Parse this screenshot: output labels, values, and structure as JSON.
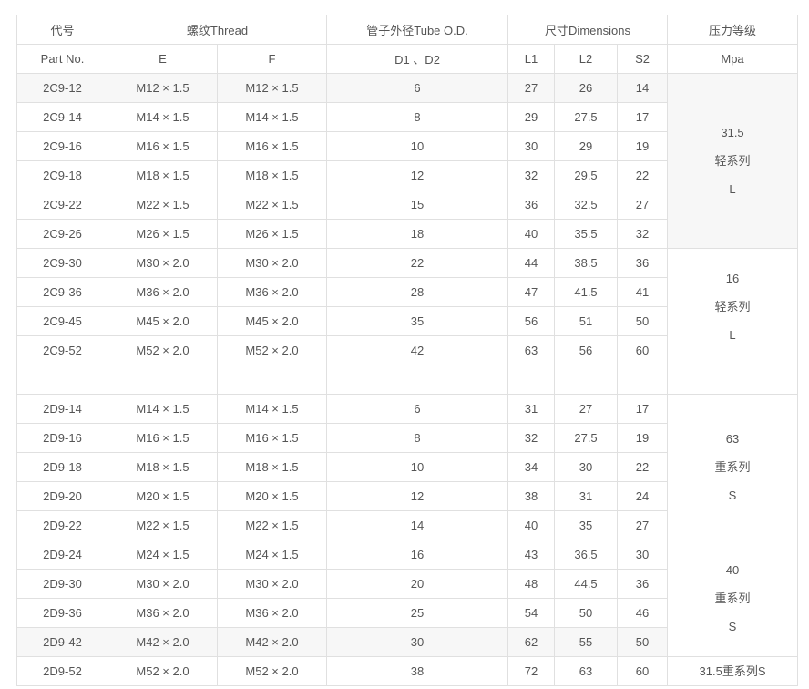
{
  "header": {
    "part_cn": "代号",
    "part_en": "Part No.",
    "thread": "螺纹Thread",
    "e": "E",
    "f": "F",
    "tube": "管子外径Tube O.D.",
    "d": "D1 、D2",
    "dims": "尺寸Dimensions",
    "l1": "L1",
    "l2": "L2",
    "s2": "S2",
    "pressure": "压力等级",
    "unit": "Mpa"
  },
  "rows": [
    {
      "part": "2C9-12",
      "e": "M12 × 1.5",
      "f": "M12 × 1.5",
      "d": "6",
      "l1": "27",
      "l2": "26",
      "s2": "14",
      "hl": true
    },
    {
      "part": "2C9-14",
      "e": "M14 × 1.5",
      "f": "M14 × 1.5",
      "d": "8",
      "l1": "29",
      "l2": "27.5",
      "s2": "17"
    },
    {
      "part": "2C9-16",
      "e": "M16 × 1.5",
      "f": "M16 × 1.5",
      "d": "10",
      "l1": "30",
      "l2": "29",
      "s2": "19"
    },
    {
      "part": "2C9-18",
      "e": "M18 × 1.5",
      "f": "M18 × 1.5",
      "d": "12",
      "l1": "32",
      "l2": "29.5",
      "s2": "22"
    },
    {
      "part": "2C9-22",
      "e": "M22 × 1.5",
      "f": "M22 × 1.5",
      "d": "15",
      "l1": "36",
      "l2": "32.5",
      "s2": "27"
    },
    {
      "part": "2C9-26",
      "e": "M26 × 1.5",
      "f": "M26 × 1.5",
      "d": "18",
      "l1": "40",
      "l2": "35.5",
      "s2": "32"
    },
    {
      "part": "2C9-30",
      "e": "M30 × 2.0",
      "f": "M30 × 2.0",
      "d": "22",
      "l1": "44",
      "l2": "38.5",
      "s2": "36"
    },
    {
      "part": "2C9-36",
      "e": "M36 × 2.0",
      "f": "M36 × 2.0",
      "d": "28",
      "l1": "47",
      "l2": "41.5",
      "s2": "41"
    },
    {
      "part": "2C9-45",
      "e": "M45 × 2.0",
      "f": "M45 × 2.0",
      "d": "35",
      "l1": "56",
      "l2": "51",
      "s2": "50"
    },
    {
      "part": "2C9-52",
      "e": "M52 × 2.0",
      "f": "M52 × 2.0",
      "d": "42",
      "l1": "63",
      "l2": "56",
      "s2": "60"
    },
    {
      "part": "",
      "e": "",
      "f": "",
      "d": "",
      "l1": "",
      "l2": "",
      "s2": ""
    },
    {
      "part": "2D9-14",
      "e": "M14 × 1.5",
      "f": "M14 × 1.5",
      "d": "6",
      "l1": "31",
      "l2": "27",
      "s2": "17"
    },
    {
      "part": "2D9-16",
      "e": "M16 × 1.5",
      "f": "M16 × 1.5",
      "d": "8",
      "l1": "32",
      "l2": "27.5",
      "s2": "19"
    },
    {
      "part": "2D9-18",
      "e": "M18 × 1.5",
      "f": "M18 × 1.5",
      "d": "10",
      "l1": "34",
      "l2": "30",
      "s2": "22"
    },
    {
      "part": "2D9-20",
      "e": "M20 × 1.5",
      "f": "M20 × 1.5",
      "d": "12",
      "l1": "38",
      "l2": "31",
      "s2": "24"
    },
    {
      "part": "2D9-22",
      "e": "M22 × 1.5",
      "f": "M22 × 1.5",
      "d": "14",
      "l1": "40",
      "l2": "35",
      "s2": "27"
    },
    {
      "part": "2D9-24",
      "e": "M24 × 1.5",
      "f": "M24 × 1.5",
      "d": "16",
      "l1": "43",
      "l2": "36.5",
      "s2": "30"
    },
    {
      "part": "2D9-30",
      "e": "M30 × 2.0",
      "f": "M30 × 2.0",
      "d": "20",
      "l1": "48",
      "l2": "44.5",
      "s2": "36"
    },
    {
      "part": "2D9-36",
      "e": "M36 × 2.0",
      "f": "M36 × 2.0",
      "d": "25",
      "l1": "54",
      "l2": "50",
      "s2": "46"
    },
    {
      "part": "2D9-42",
      "e": "M42 × 2.0",
      "f": "M42 × 2.0",
      "d": "30",
      "l1": "62",
      "l2": "55",
      "s2": "50",
      "hl": true
    },
    {
      "part": "2D9-52",
      "e": "M52 × 2.0",
      "f": "M52 × 2.0",
      "d": "38",
      "l1": "72",
      "l2": "63",
      "s2": "60"
    }
  ],
  "groups": [
    {
      "start": 0,
      "span": 6,
      "lines": [
        "31.5",
        "轻系列",
        "L"
      ],
      "hl": true
    },
    {
      "start": 6,
      "span": 4,
      "lines": [
        "16",
        "轻系列",
        "L"
      ]
    },
    {
      "start": 10,
      "span": 1,
      "lines": []
    },
    {
      "start": 11,
      "span": 5,
      "lines": [
        "63",
        "重系列",
        "S"
      ]
    },
    {
      "start": 16,
      "span": 4,
      "lines": [
        "40",
        "重系列",
        "S"
      ]
    },
    {
      "start": 20,
      "span": 1,
      "lines": [
        "31.5重系列S"
      ]
    }
  ],
  "colors": {
    "border": "#e0e0e0",
    "text": "#555555",
    "highlight": "#f7f7f7"
  }
}
